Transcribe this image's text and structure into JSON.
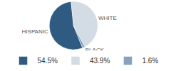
{
  "chart_data": {
    "type": "pie",
    "categories": [
      "HISPANIC",
      "WHITE",
      "BLACK"
    ],
    "values": [
      54.5,
      43.9,
      1.6
    ],
    "value_labels": [
      "54.5%",
      "43.9%",
      "1.6%"
    ],
    "colors": [
      "#2f5b82",
      "#d3dbe4",
      "#86a2bc"
    ],
    "legend": "bottom"
  }
}
